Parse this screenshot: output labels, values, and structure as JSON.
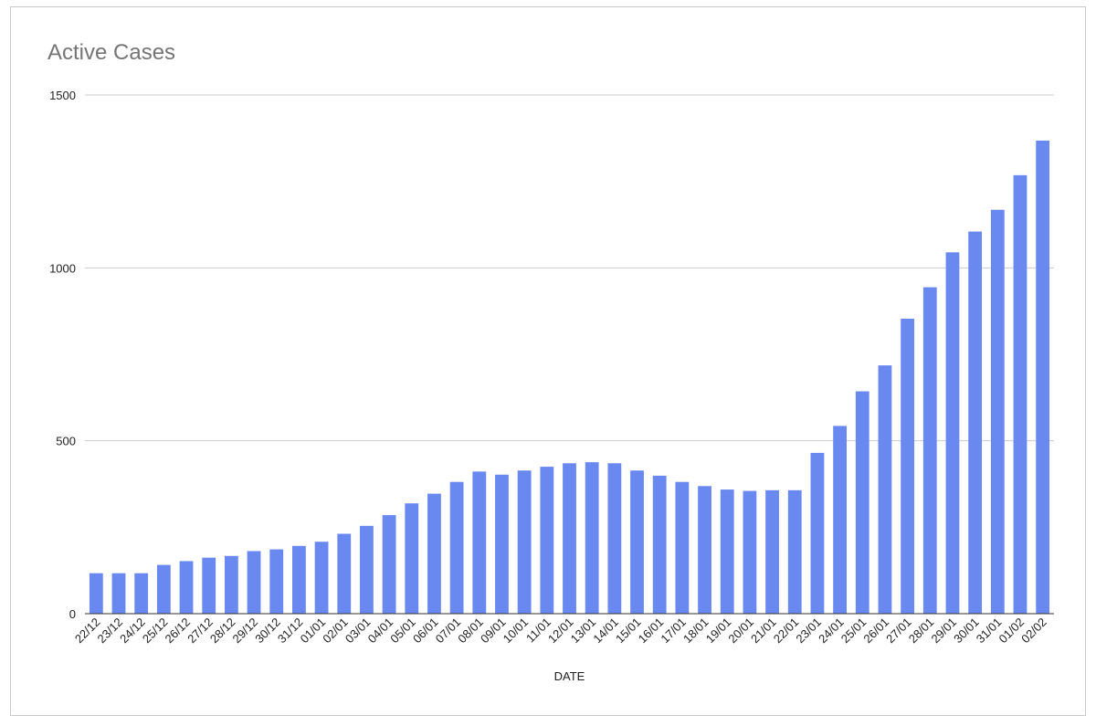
{
  "chart_data": {
    "type": "bar",
    "title": "Active Cases",
    "xlabel": "DATE",
    "ylabel": "",
    "ylim": [
      0,
      1500
    ],
    "yticks": [
      0,
      500,
      1000,
      1500
    ],
    "grid": true,
    "bar_color": "#6a89f0",
    "categories": [
      "22/12",
      "23/12",
      "24/12",
      "25/12",
      "26/12",
      "27/12",
      "28/12",
      "29/12",
      "30/12",
      "31/12",
      "01/01",
      "02/01",
      "03/01",
      "04/01",
      "05/01",
      "06/01",
      "07/01",
      "08/01",
      "09/01",
      "10/01",
      "11/01",
      "12/01",
      "13/01",
      "14/01",
      "15/01",
      "16/01",
      "17/01",
      "18/01",
      "19/01",
      "20/01",
      "21/01",
      "22/01",
      "23/01",
      "24/01",
      "25/01",
      "26/01",
      "27/01",
      "28/01",
      "29/01",
      "30/01",
      "31/01",
      "01/02",
      "02/02"
    ],
    "values": [
      117,
      117,
      117,
      141,
      152,
      162,
      167,
      181,
      186,
      196,
      208,
      231,
      254,
      285,
      319,
      347,
      381,
      411,
      402,
      414,
      425,
      435,
      438,
      435,
      414,
      399,
      381,
      369,
      359,
      355,
      357,
      357,
      465,
      543,
      643,
      718,
      853,
      944,
      1045,
      1105,
      1168,
      1268,
      1368
    ]
  }
}
